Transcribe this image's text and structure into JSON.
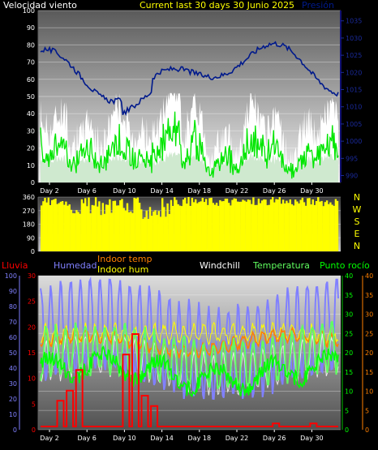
{
  "header": {
    "wind_label": "Velocidad viento",
    "title": "Current last 30 days 30 Junio 2025",
    "pressure_label": "Presión"
  },
  "colors": {
    "wind_gust": "#ffffff",
    "wind_speed": "#00e600",
    "wind_avg": "#cfe9cf",
    "pressure": "#001a8c",
    "direction": "#ffff00",
    "rain": "#ff0000",
    "humidity": "#8080ff",
    "indoor_temp": "#ff8000",
    "indoor_hum": "#ffff00",
    "windchill": "#ffffff",
    "temperature": "#60ff60",
    "dewpoint": "#00ff00"
  },
  "chart_data": [
    {
      "type": "line",
      "title": "",
      "x_ticks": [
        "Day 2",
        "Day 6",
        "Day 10",
        "Day 14",
        "Day 18",
        "Day 22",
        "Day 26",
        "Day 30"
      ],
      "y_left_ticks": [
        "0",
        "10",
        "20",
        "30",
        "40",
        "50",
        "60",
        "70",
        "80",
        "90",
        "100"
      ],
      "y_left_range": [
        0,
        100
      ],
      "y_right_ticks": [
        "990",
        "995",
        "1000",
        "1005",
        "1010",
        "1015",
        "1020",
        "1025",
        "1030",
        "1035"
      ],
      "y_right_range": [
        988,
        1038
      ],
      "series_note": "wind gust, wind speed, average wind (left axis) and pressure (right axis)"
    },
    {
      "type": "bar",
      "title": "",
      "y_ticks": [
        "0",
        "90",
        "180",
        "270",
        "360"
      ],
      "y_range": [
        0,
        360
      ],
      "compass_labels": [
        "N",
        "W",
        "S",
        "E",
        "N"
      ]
    },
    {
      "type": "line",
      "title": "",
      "legend": [
        "Lluvia",
        "Humedad",
        "Indoor temp",
        "Indoor hum",
        "Windchill",
        "Temperatura",
        "Punto rocío"
      ],
      "y_hum_ticks": [
        "0",
        "10",
        "20",
        "30",
        "40",
        "50",
        "60",
        "70",
        "80",
        "90",
        "100"
      ],
      "y_rain_ticks": [
        "0",
        "5",
        "10",
        "15",
        "20",
        "25",
        "30"
      ],
      "y_temp_ticks": [
        "0",
        "5",
        "10",
        "15",
        "20",
        "25",
        "30",
        "35",
        "40"
      ],
      "y_indoor_ticks": [
        "0",
        "5",
        "10",
        "15",
        "20",
        "25",
        "30",
        "35",
        "40"
      ],
      "temp_range": [
        0,
        40
      ],
      "rain_events": [
        [
          3,
          5
        ],
        [
          4,
          7
        ],
        [
          5,
          11
        ],
        [
          10,
          14
        ],
        [
          11,
          18
        ],
        [
          12,
          6
        ],
        [
          13,
          4
        ],
        [
          26,
          0.6
        ],
        [
          30,
          0.6
        ]
      ]
    }
  ]
}
